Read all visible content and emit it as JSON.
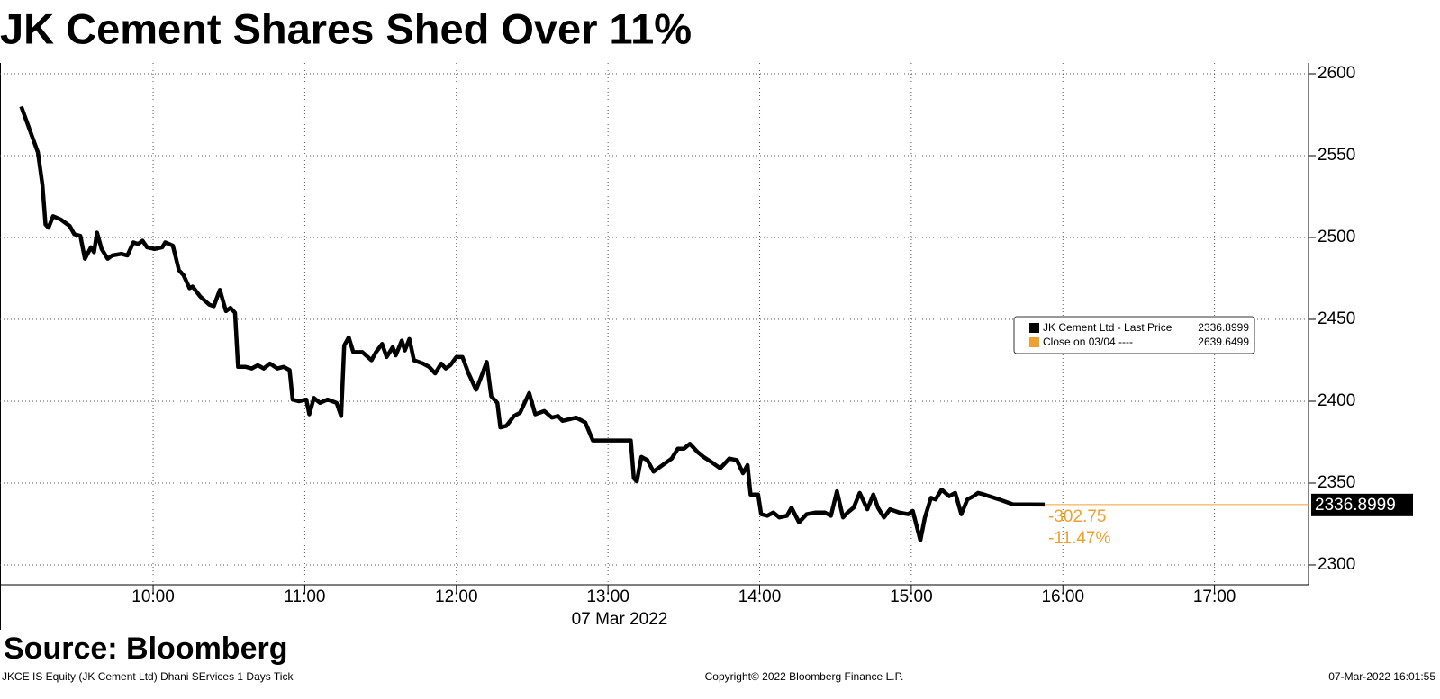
{
  "chart_data": {
    "type": "line",
    "title": "JK Cement Shares Shed Over 11%",
    "x_label": "07 Mar 2022",
    "source": "Source: Bloomberg",
    "footer": {
      "left": "JKCE IS Equity (JK Cement Ltd) Dhani SErvices 1 Days  Tick",
      "center": "Copyright© 2022 Bloomberg Finance L.P.",
      "right": "07-Mar-2022 16:01:55"
    },
    "xlim": [
      8.99,
      17.62
    ],
    "xticks": [
      {
        "value": 10,
        "label": "10:00"
      },
      {
        "value": 11,
        "label": "11:00"
      },
      {
        "value": 12,
        "label": "12:00"
      },
      {
        "value": 13,
        "label": "13:00"
      },
      {
        "value": 14,
        "label": "14:00"
      },
      {
        "value": 15,
        "label": "15:00"
      },
      {
        "value": 16,
        "label": "16:00"
      },
      {
        "value": 17,
        "label": "17:00"
      }
    ],
    "ylim": [
      2287.9,
      2606.6
    ],
    "yticks": [
      2300,
      2350,
      2400,
      2450,
      2500,
      2550,
      2600
    ],
    "grid": true,
    "x": [
      9.13,
      9.24,
      9.27,
      9.29,
      9.31,
      9.34,
      9.39,
      9.45,
      9.48,
      9.52,
      9.55,
      9.59,
      9.61,
      9.63,
      9.66,
      9.7,
      9.73,
      9.79,
      9.83,
      9.87,
      9.9,
      9.93,
      9.96,
      10.01,
      10.06,
      10.08,
      10.13,
      10.17,
      10.2,
      10.24,
      10.26,
      10.31,
      10.37,
      10.4,
      10.44,
      10.48,
      10.51,
      10.54,
      10.56,
      10.61,
      10.65,
      10.69,
      10.73,
      10.77,
      10.82,
      10.86,
      10.9,
      10.92,
      10.96,
      11.01,
      11.03,
      11.06,
      11.1,
      11.15,
      11.21,
      11.24,
      11.26,
      11.29,
      11.32,
      11.38,
      11.44,
      11.47,
      11.51,
      11.54,
      11.58,
      11.6,
      11.64,
      11.66,
      11.69,
      11.72,
      11.78,
      11.82,
      11.86,
      11.9,
      11.93,
      11.96,
      12.0,
      12.04,
      12.08,
      12.13,
      12.16,
      12.2,
      12.23,
      12.27,
      12.29,
      12.33,
      12.38,
      12.42,
      12.48,
      12.52,
      12.58,
      12.63,
      12.67,
      12.7,
      12.79,
      12.85,
      12.9,
      12.97,
      13.15,
      13.17,
      13.19,
      13.22,
      13.26,
      13.3,
      13.36,
      13.42,
      13.46,
      13.5,
      13.54,
      13.59,
      13.63,
      13.68,
      13.74,
      13.8,
      13.85,
      13.89,
      13.92,
      13.94,
      13.99,
      14.01,
      14.05,
      14.09,
      14.13,
      14.18,
      14.21,
      14.26,
      14.31,
      14.37,
      14.43,
      14.47,
      14.51,
      14.55,
      14.58,
      14.62,
      14.66,
      14.71,
      14.75,
      14.78,
      14.82,
      14.86,
      14.92,
      14.98,
      15.01,
      15.06,
      15.09,
      15.13,
      15.16,
      15.2,
      15.25,
      15.29,
      15.33,
      15.37,
      15.41,
      15.44,
      15.48,
      15.58,
      15.67,
      15.88
    ],
    "series": [
      {
        "name": "JK Cement Ltd - Last Price",
        "color": "#000000",
        "values": [
          2580,
          2552,
          2532,
          2508,
          2506,
          2513,
          2511,
          2507,
          2502,
          2501,
          2487,
          2494,
          2491,
          2503,
          2493,
          2487,
          2489,
          2490,
          2489,
          2497,
          2496,
          2498,
          2494,
          2493,
          2494,
          2497,
          2495,
          2480,
          2477,
          2469,
          2470,
          2464,
          2459,
          2458,
          2468,
          2455,
          2457,
          2454,
          2421,
          2421,
          2420,
          2422,
          2420,
          2423,
          2420,
          2421,
          2419,
          2401,
          2400,
          2401,
          2392,
          2402,
          2399,
          2401,
          2399,
          2391,
          2434,
          2439,
          2430,
          2430,
          2425,
          2430,
          2435,
          2427,
          2433,
          2428,
          2437,
          2431,
          2438,
          2425,
          2423,
          2421,
          2417,
          2423,
          2420,
          2422,
          2427,
          2427,
          2417,
          2407,
          2414,
          2424,
          2403,
          2399,
          2384,
          2385,
          2391,
          2393,
          2405,
          2392,
          2394,
          2390,
          2391,
          2388,
          2390,
          2387,
          2376,
          2376,
          2376,
          2353,
          2351,
          2366,
          2364,
          2357,
          2361,
          2365,
          2371,
          2371,
          2374,
          2369,
          2366,
          2363,
          2359,
          2365,
          2364,
          2356,
          2361,
          2343,
          2343,
          2331,
          2330,
          2332,
          2329,
          2330,
          2335,
          2326,
          2331,
          2332,
          2332,
          2330,
          2345,
          2329,
          2332,
          2335,
          2344,
          2334,
          2343,
          2335,
          2329,
          2334,
          2332,
          2331,
          2333,
          2315,
          2329,
          2341,
          2340,
          2346,
          2342,
          2344,
          2331,
          2340,
          2342,
          2344,
          2343,
          2340,
          2337,
          2336.8999
        ]
      },
      {
        "name": "Close on 03/04 ----",
        "color": "#f0a030",
        "value": 2639.6499
      }
    ],
    "annotations": [
      -302.75,
      {
        "value": -11.47,
        "label": "-11.47%"
      }
    ]
  }
}
